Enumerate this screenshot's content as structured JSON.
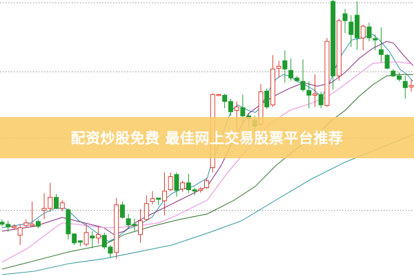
{
  "banner": {
    "text": "配资炒股免费 最佳网上交易股票平台推荐"
  },
  "colors": {
    "up": "#d8372c",
    "down": "#1f9a2f",
    "banner": "#f8cc68",
    "grid": "#888888"
  },
  "chart_data": {
    "type": "candlestick",
    "title": "",
    "xlabel": "",
    "ylabel": "",
    "ylim": [
      0,
      400
    ],
    "grid": "dotted horizontal",
    "gridlines": [
      95,
      200,
      296,
      396
    ],
    "candles_ohlc": [
      [
        78,
        82,
        72,
        75
      ],
      [
        75,
        80,
        64,
        71
      ],
      [
        70,
        75,
        67,
        72
      ],
      [
        59,
        75,
        45,
        70
      ],
      [
        73,
        82,
        70,
        77
      ],
      [
        73,
        108,
        72,
        75
      ],
      [
        79,
        82,
        69,
        72
      ],
      [
        95,
        120,
        82,
        98
      ],
      [
        98,
        135,
        93,
        114
      ],
      [
        114,
        119,
        97,
        98
      ],
      [
        98,
        110,
        94,
        106
      ],
      [
        96,
        98,
        53,
        61
      ],
      [
        61,
        62,
        45,
        48
      ],
      [
        51,
        52,
        43,
        49
      ],
      [
        46,
        76,
        43,
        63
      ],
      [
        58,
        65,
        40,
        55
      ],
      [
        55,
        73,
        47,
        60
      ],
      [
        59,
        63,
        39,
        42
      ],
      [
        42,
        45,
        27,
        33
      ],
      [
        34,
        113,
        25,
        103
      ],
      [
        103,
        108,
        83,
        85
      ],
      [
        83,
        90,
        70,
        74
      ],
      [
        75,
        83,
        65,
        73
      ],
      [
        60,
        97,
        48,
        80
      ],
      [
        82,
        117,
        80,
        105
      ],
      [
        108,
        123,
        104,
        112
      ],
      [
        113,
        113,
        103,
        111
      ],
      [
        109,
        150,
        88,
        123
      ],
      [
        125,
        150,
        123,
        144
      ],
      [
        147,
        150,
        115,
        124
      ],
      [
        126,
        138,
        122,
        135
      ],
      [
        135,
        148,
        120,
        125
      ],
      [
        125,
        128,
        117,
        123
      ],
      [
        124,
        129,
        121,
        126
      ],
      [
        128,
        142,
        126,
        138
      ],
      [
        157,
        265,
        150,
        263
      ],
      [
        262,
        264,
        261,
        263
      ],
      [
        262,
        264,
        243,
        253
      ],
      [
        253,
        257,
        232,
        238
      ],
      [
        240,
        253,
        210,
        245
      ],
      [
        244,
        263,
        222,
        232
      ],
      [
        232,
        235,
        215,
        228
      ],
      [
        226,
        232,
        210,
        217
      ],
      [
        220,
        278,
        218,
        267
      ],
      [
        268,
        272,
        242,
        245
      ],
      [
        248,
        320,
        245,
        300
      ],
      [
        301,
        312,
        288,
        304
      ],
      [
        312,
        327,
        280,
        300
      ],
      [
        298,
        315,
        283,
        287
      ],
      [
        287,
        290,
        282,
        283
      ],
      [
        282,
        314,
        267,
        270
      ],
      [
        269,
        282,
        243,
        262
      ],
      [
        262,
        292,
        245,
        264
      ],
      [
        263,
        267,
        243,
        248
      ],
      [
        247,
        345,
        245,
        340
      ],
      [
        398,
        400,
        270,
        290
      ],
      [
        290,
        373,
        283,
        370
      ],
      [
        380,
        387,
        352,
        370
      ],
      [
        368,
        378,
        332,
        350
      ],
      [
        378,
        398,
        328,
        345
      ],
      [
        345,
        364,
        327,
        362
      ],
      [
        361,
        367,
        340,
        345
      ],
      [
        344,
        350,
        327,
        342
      ],
      [
        328,
        360,
        310,
        321
      ],
      [
        320,
        322,
        300,
        301
      ],
      [
        297,
        300,
        288,
        290
      ],
      [
        290,
        295,
        282,
        285
      ],
      [
        282,
        290,
        257,
        273
      ],
      [
        274,
        285,
        267,
        276
      ]
    ],
    "moving_averages": [
      {
        "color": "#3d98b8",
        "points": [
          [
            0,
            70
          ],
          [
            4.8,
            77
          ],
          [
            6.8,
            90
          ],
          [
            8.8,
            98
          ],
          [
            10.6,
            98
          ],
          [
            12.8,
            80
          ],
          [
            14.6,
            70
          ],
          [
            16.9,
            55
          ],
          [
            17.7,
            50
          ],
          [
            18.9,
            55
          ],
          [
            20.9,
            68
          ],
          [
            22.9,
            75
          ],
          [
            24.9,
            85
          ],
          [
            26.9,
            110
          ],
          [
            28.3,
            120
          ],
          [
            29.5,
            125
          ],
          [
            31.8,
            130
          ],
          [
            34.1,
            142
          ],
          [
            34.6,
            157
          ],
          [
            36.4,
            200
          ],
          [
            38.1,
            240
          ],
          [
            39.2,
            248
          ],
          [
            40.9,
            240
          ],
          [
            42.1,
            237
          ],
          [
            43,
            245
          ],
          [
            44.4,
            270
          ],
          [
            45.5,
            285
          ],
          [
            46.7,
            292
          ],
          [
            47.8,
            290
          ],
          [
            49,
            282
          ],
          [
            50.1,
            278
          ],
          [
            51.8,
            270
          ],
          [
            53,
            260
          ],
          [
            54.1,
            272
          ],
          [
            55.3,
            300
          ],
          [
            56.4,
            320
          ],
          [
            58.1,
            342
          ],
          [
            59.9,
            345
          ],
          [
            61.6,
            350
          ],
          [
            62.7,
            342
          ],
          [
            64.4,
            325
          ],
          [
            66.1,
            300
          ],
          [
            67.3,
            292
          ],
          [
            68.3,
            282
          ]
        ]
      },
      {
        "color": "#8c3a86",
        "points": [
          [
            0,
            65
          ],
          [
            5.4,
            72
          ],
          [
            10,
            85
          ],
          [
            12.3,
            80
          ],
          [
            14.6,
            75
          ],
          [
            16.9,
            70
          ],
          [
            18.6,
            60
          ],
          [
            20.3,
            65
          ],
          [
            22.6,
            80
          ],
          [
            24.9,
            90
          ],
          [
            27.2,
            100
          ],
          [
            29.5,
            110
          ],
          [
            31.8,
            120
          ],
          [
            34.1,
            130
          ],
          [
            36.4,
            160
          ],
          [
            38.6,
            200
          ],
          [
            40.9,
            235
          ],
          [
            43.2,
            250
          ],
          [
            45.5,
            262
          ],
          [
            47.8,
            272
          ],
          [
            50.1,
            280
          ],
          [
            52.4,
            275
          ],
          [
            54.7,
            280
          ],
          [
            57,
            295
          ],
          [
            59.3,
            315
          ],
          [
            61.6,
            330
          ],
          [
            63.9,
            340
          ],
          [
            65,
            338
          ],
          [
            66.7,
            320
          ],
          [
            68.3,
            305
          ]
        ]
      },
      {
        "color": "#ea92e0",
        "points": [
          [
            0,
            20
          ],
          [
            4.2,
            40
          ],
          [
            8.8,
            70
          ],
          [
            10,
            77
          ],
          [
            12.3,
            75
          ],
          [
            16.9,
            70
          ],
          [
            19.2,
            70
          ],
          [
            21.4,
            72
          ],
          [
            23.7,
            74
          ],
          [
            26,
            77
          ],
          [
            28.3,
            85
          ],
          [
            30.6,
            95
          ],
          [
            34.1,
            110
          ],
          [
            37.5,
            150
          ],
          [
            40.9,
            185
          ],
          [
            44.4,
            220
          ],
          [
            47.8,
            240
          ],
          [
            51.3,
            250
          ],
          [
            54.1,
            260
          ],
          [
            55.8,
            270
          ],
          [
            58.1,
            285
          ],
          [
            61.6,
            308
          ],
          [
            63.9,
            310
          ],
          [
            66.1,
            310
          ],
          [
            68.3,
            307
          ]
        ]
      },
      {
        "color": "#3f7d3c",
        "points": [
          [
            0,
            10
          ],
          [
            5.4,
            22
          ],
          [
            11.1,
            35
          ],
          [
            16.9,
            45
          ],
          [
            20.3,
            60
          ],
          [
            24.9,
            72
          ],
          [
            29.5,
            82
          ],
          [
            34.1,
            90
          ],
          [
            38.6,
            110
          ],
          [
            42.1,
            130
          ],
          [
            45.5,
            160
          ],
          [
            49,
            185
          ],
          [
            52.4,
            205
          ],
          [
            54.7,
            225
          ],
          [
            57,
            240
          ],
          [
            59.3,
            260
          ],
          [
            61.6,
            277
          ],
          [
            63.9,
            290
          ],
          [
            66.1,
            292
          ],
          [
            68.3,
            292
          ]
        ]
      },
      {
        "color": "#3c9ca2",
        "points": [
          [
            0,
            2
          ],
          [
            5.4,
            7
          ],
          [
            11.1,
            18
          ],
          [
            16.9,
            25
          ],
          [
            22.6,
            35
          ],
          [
            28.3,
            45
          ],
          [
            34.1,
            62
          ],
          [
            39.8,
            80
          ],
          [
            45.5,
            110
          ],
          [
            51.3,
            140
          ],
          [
            57,
            165
          ],
          [
            62.7,
            185
          ],
          [
            68.3,
            205
          ]
        ]
      }
    ]
  }
}
